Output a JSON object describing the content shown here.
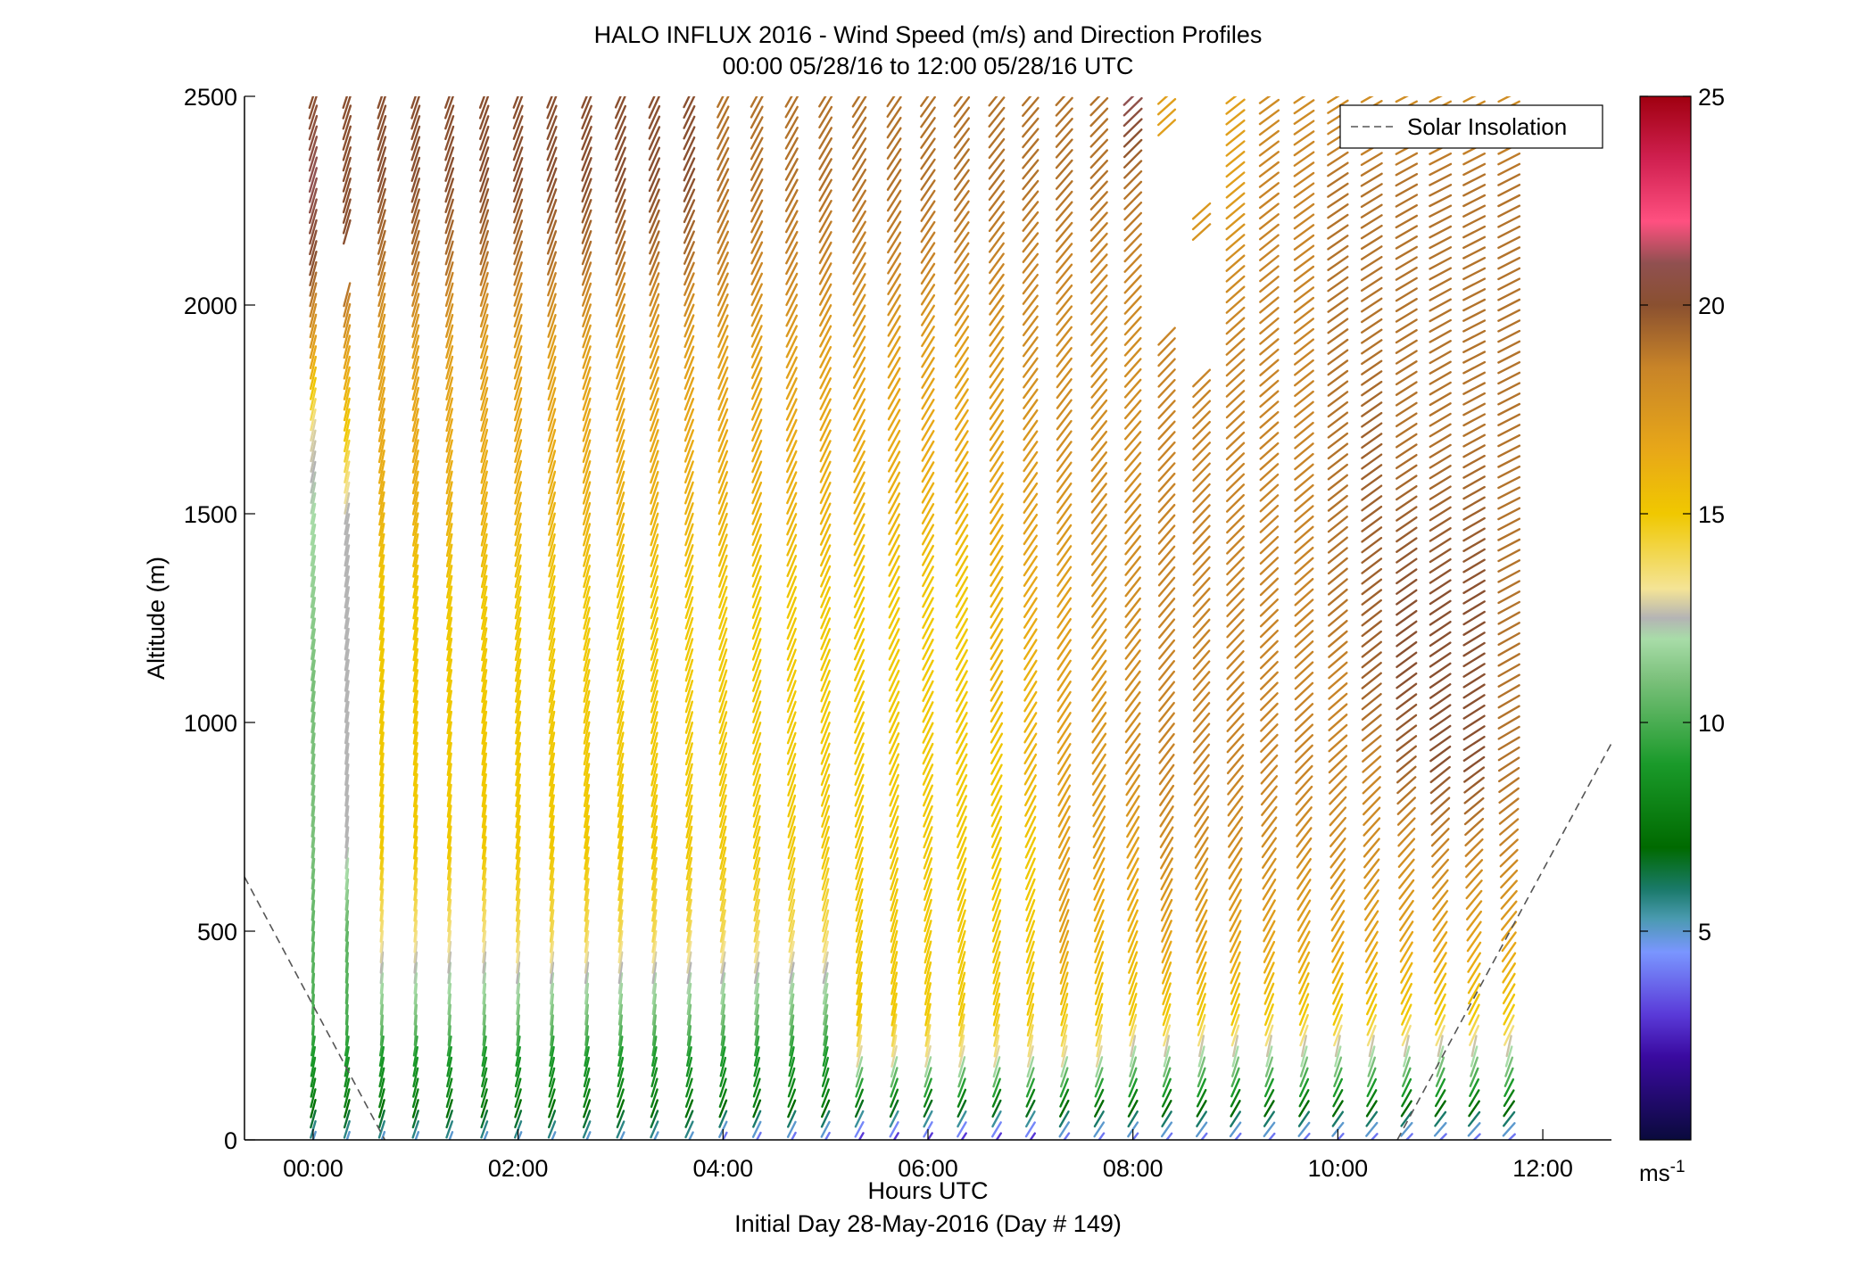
{
  "chart_data": {
    "type": "quiver",
    "title": "HALO INFLUX 2016 - Wind Speed (m/s) and Direction Profiles",
    "subtitle": "00:00 05/28/16 to 12:00 05/28/16  UTC",
    "xlabel": "Hours UTC",
    "xlabel2": "Initial Day 28-May-2016 (Day # 149)",
    "ylabel": "Altitude (m)",
    "xlim_hours": [
      -0.67,
      12.67
    ],
    "ylim": [
      0,
      2500
    ],
    "xticks": [
      {
        "value": 0,
        "label": "00:00"
      },
      {
        "value": 2,
        "label": "02:00"
      },
      {
        "value": 4,
        "label": "04:00"
      },
      {
        "value": 6,
        "label": "06:00"
      },
      {
        "value": 8,
        "label": "08:00"
      },
      {
        "value": 10,
        "label": "10:00"
      },
      {
        "value": 12,
        "label": "12:00"
      }
    ],
    "yticks": [
      {
        "value": 0,
        "label": "0"
      },
      {
        "value": 500,
        "label": "500"
      },
      {
        "value": 1000,
        "label": "1000"
      },
      {
        "value": 1500,
        "label": "1500"
      },
      {
        "value": 2000,
        "label": "2000"
      },
      {
        "value": 2500,
        "label": "2500"
      }
    ],
    "grid": false,
    "legend": {
      "position": "top-right",
      "entries": [
        {
          "name": "Solar Insolation",
          "style": "dashed",
          "color": "#555555"
        }
      ]
    },
    "colorbar": {
      "label": "ms-1",
      "label_main": "ms",
      "label_sup": "-1",
      "range": [
        0,
        25
      ],
      "ticks": [
        {
          "value": 5,
          "label": "5"
        },
        {
          "value": 10,
          "label": "10"
        },
        {
          "value": 15,
          "label": "15"
        },
        {
          "value": 20,
          "label": "20"
        },
        {
          "value": 25,
          "label": "25"
        }
      ],
      "stops": [
        {
          "v": 0,
          "c": "#0a0a3c"
        },
        {
          "v": 2,
          "c": "#3a0aa0"
        },
        {
          "v": 3,
          "c": "#5a3ad8"
        },
        {
          "v": 4.5,
          "c": "#7a96ff"
        },
        {
          "v": 5.3,
          "c": "#4a9ab0"
        },
        {
          "v": 6,
          "c": "#1a7a6a"
        },
        {
          "v": 7,
          "c": "#006a00"
        },
        {
          "v": 9,
          "c": "#1a9a2a"
        },
        {
          "v": 11,
          "c": "#7ac07a"
        },
        {
          "v": 12,
          "c": "#a8dca8"
        },
        {
          "v": 12.5,
          "c": "#b4b4b4"
        },
        {
          "v": 13.2,
          "c": "#f4e496"
        },
        {
          "v": 15,
          "c": "#f0c800"
        },
        {
          "v": 16.5,
          "c": "#e8a818"
        },
        {
          "v": 18.5,
          "c": "#c88428"
        },
        {
          "v": 20,
          "c": "#8a5030"
        },
        {
          "v": 21,
          "c": "#905050"
        },
        {
          "v": 22,
          "c": "#ff5080"
        },
        {
          "v": 23.5,
          "c": "#d02050"
        },
        {
          "v": 25,
          "c": "#a00010"
        }
      ]
    },
    "solar_insolation": [
      {
        "x": -0.67,
        "y": 630
      },
      {
        "x": 0.7,
        "y": 0
      },
      {
        "x": 10.58,
        "y": 0
      },
      {
        "x": 12.67,
        "y": 950
      }
    ],
    "profile_times_hours": [
      0.0,
      0.33,
      0.67,
      1.0,
      1.33,
      1.67,
      2.0,
      2.33,
      2.67,
      3.0,
      3.33,
      3.67,
      4.0,
      4.33,
      4.67,
      5.0,
      5.33,
      5.67,
      6.0,
      6.33,
      6.67,
      7.0,
      7.33,
      7.67,
      8.0,
      8.33,
      8.67,
      9.0,
      9.33,
      9.67,
      10.0,
      10.33,
      10.67,
      11.0,
      11.33,
      11.67
    ],
    "profile_top_m": [
      2500,
      2500,
      2500,
      2500,
      2500,
      2500,
      2500,
      2500,
      2500,
      2500,
      2500,
      2500,
      2500,
      2500,
      2500,
      2500,
      2500,
      2500,
      2500,
      2500,
      2500,
      2500,
      2500,
      2500,
      2500,
      2500,
      2500,
      2500,
      2500,
      2500,
      2500,
      2500,
      2500,
      2500,
      2500,
      2500
    ],
    "gaps": [
      {
        "profile": 25,
        "from_m": 1950,
        "to_m": 2400
      },
      {
        "profile": 26,
        "from_m": 2250,
        "to_m": 2500
      },
      {
        "profile": 26,
        "from_m": 1850,
        "to_m": 2150
      },
      {
        "profile": 1,
        "from_m": 2050,
        "to_m": 2150
      }
    ],
    "wind_speed_profiles": {
      "altitude_m": [
        0,
        100,
        200,
        300,
        500,
        700,
        900,
        1100,
        1300,
        1500,
        1700,
        1900,
        2100,
        2300,
        2500
      ],
      "speed_ms_by_profile": [
        [
          5,
          8,
          9,
          10,
          10.5,
          11,
          11,
          11,
          11.5,
          12,
          13,
          17,
          20,
          21,
          20
        ],
        [
          5,
          8,
          9,
          10,
          10.5,
          12.5,
          12.5,
          12.5,
          12.5,
          12.5,
          15,
          17,
          20,
          20,
          20
        ],
        [
          5,
          8,
          9,
          11,
          13.5,
          15,
          15,
          15,
          15,
          16,
          16.5,
          17,
          19,
          20,
          20
        ],
        [
          5,
          8,
          9,
          11,
          13.5,
          15,
          15,
          15,
          15,
          16,
          16.5,
          17,
          19,
          20,
          20
        ],
        [
          5,
          8,
          9,
          11,
          13.5,
          15,
          15,
          15,
          15,
          16,
          16.5,
          17,
          19,
          20,
          20
        ],
        [
          5,
          8,
          9,
          11,
          13.5,
          15,
          15,
          15,
          15,
          16,
          16.5,
          17,
          19,
          20,
          20
        ],
        [
          5,
          8,
          9,
          11,
          14,
          15,
          15,
          15,
          15,
          16,
          16.5,
          17,
          19,
          20,
          20
        ],
        [
          5,
          8,
          9,
          11,
          14,
          15,
          15,
          15,
          15,
          16,
          16.5,
          17,
          19,
          20,
          20
        ],
        [
          5,
          8,
          9,
          11,
          14,
          15,
          15,
          15,
          15,
          16,
          16.5,
          17,
          19,
          20,
          20
        ],
        [
          5,
          8,
          9,
          11,
          14,
          15,
          15,
          15,
          15,
          16,
          16.5,
          17,
          19,
          20,
          20
        ],
        [
          5,
          8,
          9,
          11,
          14,
          15,
          15,
          15,
          15,
          16,
          16.5,
          17,
          19,
          20,
          20
        ],
        [
          5,
          8,
          9,
          11,
          14,
          15,
          15,
          15,
          15,
          16,
          16.5,
          17,
          19,
          20,
          20
        ],
        [
          4,
          8,
          9,
          11,
          14,
          15,
          15,
          15,
          15,
          16,
          16.5,
          17,
          18.5,
          19,
          19
        ],
        [
          4,
          8,
          9,
          11,
          14,
          15,
          15,
          15,
          15,
          16,
          16.5,
          17,
          18.5,
          19,
          19
        ],
        [
          4,
          8,
          9,
          11,
          14,
          15,
          15,
          15,
          15,
          16,
          16.5,
          17,
          18.5,
          19,
          19
        ],
        [
          4,
          8,
          9,
          11,
          14,
          15,
          15,
          15,
          15,
          16,
          16.5,
          17,
          18.5,
          19,
          19
        ],
        [
          3,
          8,
          13,
          15,
          15,
          15,
          15,
          15,
          15,
          16,
          16.5,
          17,
          18.5,
          19,
          19
        ],
        [
          3,
          8,
          13,
          15,
          15,
          15,
          15,
          15,
          15,
          16,
          16.5,
          17,
          18.5,
          19,
          19
        ],
        [
          3,
          8,
          13,
          15,
          15,
          15,
          15,
          15,
          15,
          16,
          16.5,
          17,
          18.5,
          19,
          19
        ],
        [
          3,
          8,
          13,
          15,
          15,
          15,
          15,
          15,
          15,
          16,
          16.5,
          17,
          18.5,
          19,
          19
        ],
        [
          3,
          8,
          13,
          15,
          15,
          15,
          15,
          16,
          16,
          16.5,
          17,
          17.5,
          18.5,
          19,
          19
        ],
        [
          3,
          8,
          13,
          15,
          15,
          15,
          16,
          16,
          16.5,
          17,
          17.5,
          18,
          18.5,
          19,
          19
        ],
        [
          4,
          8,
          13,
          15,
          17,
          17,
          17,
          17,
          17,
          17.5,
          18,
          18,
          18.5,
          19,
          19
        ],
        [
          4,
          8,
          13,
          15,
          16,
          17,
          17.5,
          17.5,
          17.5,
          18,
          18,
          18,
          18.5,
          19,
          19
        ],
        [
          4,
          8,
          12,
          15,
          16,
          17,
          18,
          18,
          18,
          18,
          18,
          18,
          18.5,
          19,
          21
        ],
        [
          4,
          8,
          12,
          15,
          17,
          18,
          18.5,
          18.5,
          18.5,
          18.5,
          18.5,
          18.5,
          18,
          17,
          17
        ],
        [
          4,
          8,
          12,
          15,
          17,
          18,
          18.5,
          18.5,
          18.5,
          18.5,
          18.5,
          18.5,
          18,
          17,
          17
        ],
        [
          4,
          8,
          12,
          15,
          17,
          18,
          18.5,
          18.5,
          18.5,
          18.5,
          18.5,
          18.5,
          18,
          17,
          17
        ],
        [
          4,
          8,
          12,
          15,
          17,
          18,
          18.5,
          18.5,
          18.5,
          18.5,
          18.5,
          18.5,
          18.5,
          18.5,
          18
        ],
        [
          4,
          8,
          12,
          15,
          17,
          18,
          18.5,
          18.5,
          18.5,
          18.5,
          18.5,
          18.5,
          18.5,
          18.5,
          18
        ],
        [
          4,
          8,
          12,
          15,
          17,
          18,
          18.5,
          18.5,
          19,
          19,
          19,
          19,
          19,
          19,
          18
        ],
        [
          4,
          8,
          12,
          15,
          17,
          18,
          18.5,
          19.5,
          19.5,
          19.5,
          19.5,
          19,
          19,
          19,
          18
        ],
        [
          4,
          8,
          12,
          15,
          17,
          18,
          19.5,
          20,
          20,
          19.5,
          19,
          19,
          19,
          19,
          18
        ],
        [
          4,
          8,
          12,
          15,
          17,
          18.5,
          20,
          20,
          20,
          19.5,
          19,
          19,
          19,
          19,
          18
        ],
        [
          4,
          8,
          12,
          15,
          17,
          18.5,
          20,
          20,
          20,
          19.5,
          19,
          19,
          19,
          19,
          18
        ],
        [
          4,
          8,
          12,
          15,
          17,
          18.5,
          19,
          19,
          19,
          19,
          19,
          19,
          19,
          19,
          18
        ]
      ]
    }
  }
}
